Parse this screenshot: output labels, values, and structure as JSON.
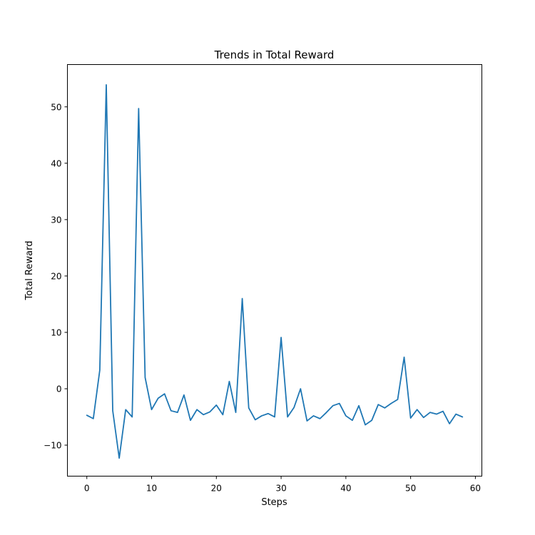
{
  "chart_data": {
    "type": "line",
    "title": "Trends in Total Reward",
    "xlabel": "Steps",
    "ylabel": "Total Reward",
    "xlim": [
      -3,
      61
    ],
    "ylim": [
      -15.5,
      57.5
    ],
    "x_ticks": [
      0,
      10,
      20,
      30,
      40,
      50,
      60
    ],
    "y_ticks": [
      -10,
      0,
      10,
      20,
      30,
      40,
      50
    ],
    "x_tick_labels": [
      "0",
      "10",
      "20",
      "30",
      "40",
      "50",
      "60"
    ],
    "y_tick_labels": [
      "−10",
      "0",
      "10",
      "20",
      "30",
      "40",
      "50"
    ],
    "grid": false,
    "legend": "none",
    "series": [
      {
        "color": "#1f77b4",
        "x": [
          0,
          1,
          2,
          3,
          4,
          5,
          6,
          7,
          8,
          9,
          10,
          11,
          12,
          13,
          14,
          15,
          16,
          17,
          18,
          19,
          20,
          21,
          22,
          23,
          24,
          25,
          26,
          27,
          28,
          29,
          30,
          31,
          32,
          33,
          34,
          35,
          36,
          37,
          38,
          39,
          40,
          41,
          42,
          43,
          44,
          45,
          46,
          47,
          48,
          49,
          50,
          51,
          52,
          53,
          54,
          55,
          56,
          57,
          58
        ],
        "y": [
          -4.7,
          -5.3,
          3.3,
          53.9,
          -3.9,
          -12.3,
          -3.7,
          -5.0,
          49.7,
          2.0,
          -3.7,
          -1.7,
          -0.9,
          -3.9,
          -4.2,
          -1.1,
          -5.6,
          -3.7,
          -4.6,
          -4.1,
          -2.9,
          -4.6,
          1.3,
          -4.2,
          16.0,
          -3.4,
          -5.5,
          -4.8,
          -4.4,
          -5.0,
          9.1,
          -5.0,
          -3.3,
          0.0,
          -5.7,
          -4.8,
          -5.3,
          -4.2,
          -3.0,
          -2.6,
          -4.8,
          -5.6,
          -3.0,
          -6.4,
          -5.6,
          -2.8,
          -3.4,
          -2.6,
          -1.9,
          5.6,
          -5.2,
          -3.7,
          -5.1,
          -4.2,
          -4.5,
          -4.0,
          -6.2,
          -4.5,
          -5.0
        ]
      }
    ]
  }
}
